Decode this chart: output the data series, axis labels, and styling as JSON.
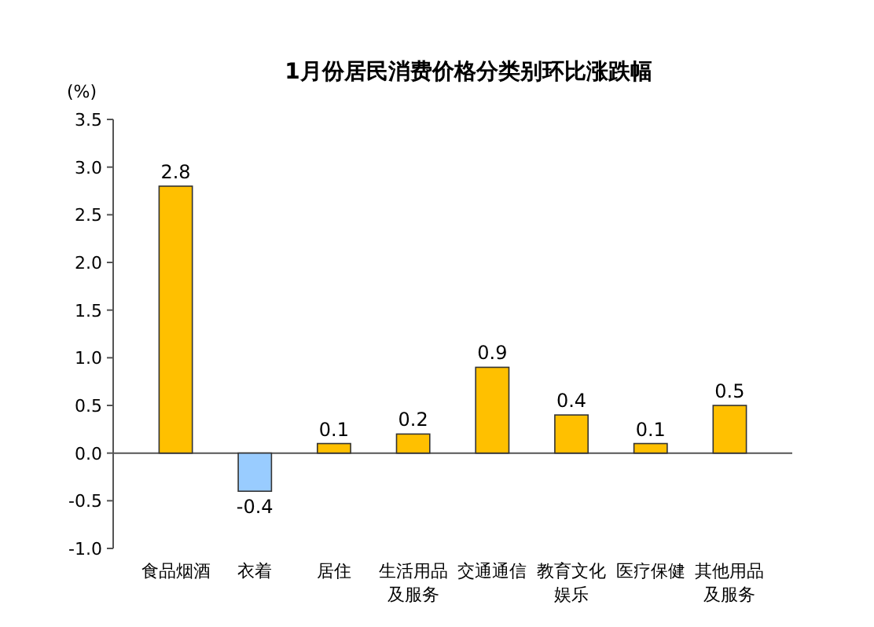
{
  "chart_data": {
    "type": "bar",
    "title": "1月份居民消费价格分类别环比涨跌幅",
    "ylabel": "(%)",
    "categories": [
      "食品烟酒",
      "衣着",
      "居住",
      "生活用品及服务",
      "交通通信",
      "教育文化娱乐",
      "医疗保健",
      "其他用品及服务"
    ],
    "values": [
      2.8,
      -0.4,
      0.1,
      0.2,
      0.9,
      0.4,
      0.1,
      0.5
    ],
    "colors": [
      "#ffc000",
      "#99ccff",
      "#ffc000",
      "#ffc000",
      "#ffc000",
      "#ffc000",
      "#ffc000",
      "#ffc000"
    ],
    "ylim": [
      -1,
      3.5
    ],
    "yticks": [
      {
        "value": -1,
        "label": "-1.0"
      },
      {
        "value": -0.5,
        "label": "-0.5"
      },
      {
        "value": 0,
        "label": "0.0"
      },
      {
        "value": 0.5,
        "label": "0.5"
      },
      {
        "value": 1,
        "label": "1.0"
      },
      {
        "value": 1.5,
        "label": "1.5"
      },
      {
        "value": 2,
        "label": "2.0"
      },
      {
        "value": 2.5,
        "label": "2.5"
      },
      {
        "value": 3,
        "label": "3.0"
      },
      {
        "value": 3.5,
        "label": "3.5"
      }
    ],
    "data_labels": true
  }
}
